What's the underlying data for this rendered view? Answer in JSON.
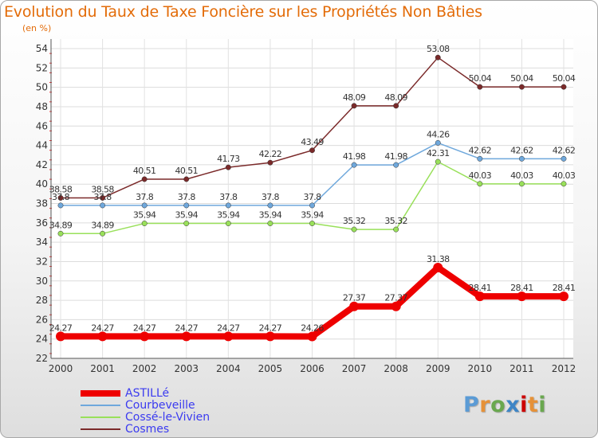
{
  "chart_data": {
    "type": "line",
    "title": "Evolution du Taux de Taxe Foncière sur les Propriétés Non Bâties",
    "subtitle": "(en %)",
    "categories": [
      "2000",
      "2001",
      "2002",
      "2003",
      "2004",
      "2005",
      "2006",
      "2007",
      "2008",
      "2009",
      "2010",
      "2011",
      "2012"
    ],
    "ylim": [
      22,
      54
    ],
    "yticks": [
      "22",
      "24",
      "26",
      "28",
      "30",
      "32",
      "34",
      "36",
      "38",
      "40",
      "42",
      "44",
      "46",
      "48",
      "50",
      "52",
      "54"
    ],
    "grid": true,
    "legend_position": "bottom-left",
    "series": [
      {
        "name": "ASTILLé",
        "color": "#ee0000",
        "values": [
          24.27,
          24.27,
          24.27,
          24.27,
          24.27,
          24.27,
          24.26,
          27.37,
          27.37,
          31.38,
          28.41,
          28.41,
          28.41
        ],
        "labels": [
          "24.27",
          "24.27",
          "24.27",
          "24.27",
          "24.27",
          "24.27",
          "24.26",
          "27.37",
          "27.37",
          "31.38",
          "28.41",
          "28.41",
          "28.41"
        ]
      },
      {
        "name": "Courbeveille",
        "color": "#6fa8dc",
        "values": [
          37.8,
          37.8,
          37.8,
          37.8,
          37.8,
          37.8,
          37.8,
          41.98,
          41.98,
          44.26,
          42.62,
          42.62,
          42.62
        ],
        "labels": [
          "37.8",
          "37.8",
          "37.8",
          "37.8",
          "37.8",
          "37.8",
          "37.8",
          "41.98",
          "41.98",
          "44.26",
          "42.62",
          "42.62",
          "42.62"
        ]
      },
      {
        "name": "Cossé-le-Vivien",
        "color": "#99e05a",
        "values": [
          34.89,
          34.89,
          35.94,
          35.94,
          35.94,
          35.94,
          35.94,
          35.32,
          35.32,
          42.31,
          40.03,
          40.03,
          40.03
        ],
        "labels": [
          "34.89",
          "34.89",
          "35.94",
          "35.94",
          "35.94",
          "35.94",
          "35.94",
          "35.32",
          "35.32",
          "42.31",
          "40.03",
          "40.03",
          "40.03"
        ]
      },
      {
        "name": "Cosmes",
        "color": "#7b2a2a",
        "values": [
          38.58,
          38.58,
          40.51,
          40.51,
          41.73,
          42.22,
          43.49,
          48.09,
          48.09,
          53.08,
          50.04,
          50.04,
          50.04
        ],
        "labels": [
          "38.58",
          "38.58",
          "40.51",
          "40.51",
          "41.73",
          "42.22",
          "43.49",
          "48.09",
          "48.09",
          "53.08",
          "50.04",
          "50.04",
          "50.04"
        ]
      }
    ]
  },
  "logo": {
    "letters": [
      "P",
      "r",
      "o",
      "x",
      "i",
      "t",
      "i"
    ],
    "colors": [
      "#5b9bd5",
      "#e69138",
      "#6aa84f",
      "#3d85c6",
      "#cc0000",
      "#e69138",
      "#6aa84f"
    ]
  }
}
